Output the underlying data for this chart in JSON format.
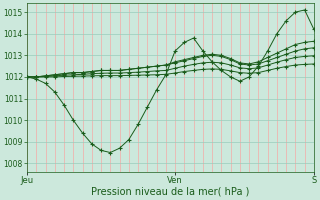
{
  "bg_color": "#cce8dc",
  "line_color": "#1a5c1a",
  "grid_color_v": "#ff9999",
  "grid_color_h": "#99ccbb",
  "ylabel_values": [
    1008,
    1009,
    1010,
    1011,
    1012,
    1013,
    1014,
    1015
  ],
  "ylim": [
    1007.6,
    1015.4
  ],
  "xlabel": "Pression niveau de la mer( hPa )",
  "xtick_labels": [
    "Jeu",
    "Ven",
    "S"
  ],
  "xtick_positions": [
    0,
    16,
    31
  ],
  "n_points": 32,
  "day_boundaries": [
    0,
    16,
    31
  ],
  "lines": [
    [
      1012.0,
      1011.9,
      1011.7,
      1011.3,
      1010.7,
      1010.0,
      1009.4,
      1008.9,
      1008.6,
      1008.5,
      1008.7,
      1009.1,
      1009.8,
      1010.6,
      1011.4,
      1012.1,
      1013.2,
      1013.6,
      1013.8,
      1013.2,
      1012.7,
      1012.3,
      1012.0,
      1011.8,
      1012.0,
      1012.5,
      1013.2,
      1014.0,
      1014.6,
      1015.0,
      1015.1,
      1014.2
    ],
    [
      1012.0,
      1012.0,
      1012.05,
      1012.1,
      1012.15,
      1012.2,
      1012.2,
      1012.25,
      1012.3,
      1012.3,
      1012.3,
      1012.35,
      1012.4,
      1012.45,
      1012.5,
      1012.55,
      1012.7,
      1012.8,
      1012.9,
      1013.0,
      1013.05,
      1013.0,
      1012.85,
      1012.65,
      1012.6,
      1012.7,
      1012.9,
      1013.1,
      1013.3,
      1013.5,
      1013.6,
      1013.65
    ],
    [
      1012.0,
      1012.0,
      1012.05,
      1012.1,
      1012.15,
      1012.2,
      1012.2,
      1012.25,
      1012.3,
      1012.3,
      1012.3,
      1012.35,
      1012.4,
      1012.45,
      1012.5,
      1012.55,
      1012.65,
      1012.75,
      1012.85,
      1012.95,
      1013.0,
      1012.95,
      1012.8,
      1012.6,
      1012.55,
      1012.6,
      1012.75,
      1012.9,
      1013.05,
      1013.2,
      1013.3,
      1013.35
    ],
    [
      1012.0,
      1012.0,
      1012.02,
      1012.05,
      1012.08,
      1012.1,
      1012.12,
      1012.15,
      1012.17,
      1012.18,
      1012.18,
      1012.2,
      1012.22,
      1012.25,
      1012.28,
      1012.3,
      1012.4,
      1012.5,
      1012.58,
      1012.65,
      1012.68,
      1012.65,
      1012.55,
      1012.42,
      1012.38,
      1012.42,
      1012.55,
      1012.68,
      1012.8,
      1012.9,
      1012.95,
      1012.98
    ],
    [
      1012.0,
      1012.0,
      1012.0,
      1012.0,
      1012.02,
      1012.03,
      1012.04,
      1012.05,
      1012.06,
      1012.06,
      1012.06,
      1012.07,
      1012.08,
      1012.09,
      1012.1,
      1012.12,
      1012.18,
      1012.25,
      1012.3,
      1012.35,
      1012.37,
      1012.35,
      1012.28,
      1012.2,
      1012.17,
      1012.2,
      1012.3,
      1012.4,
      1012.48,
      1012.55,
      1012.58,
      1012.6
    ]
  ]
}
